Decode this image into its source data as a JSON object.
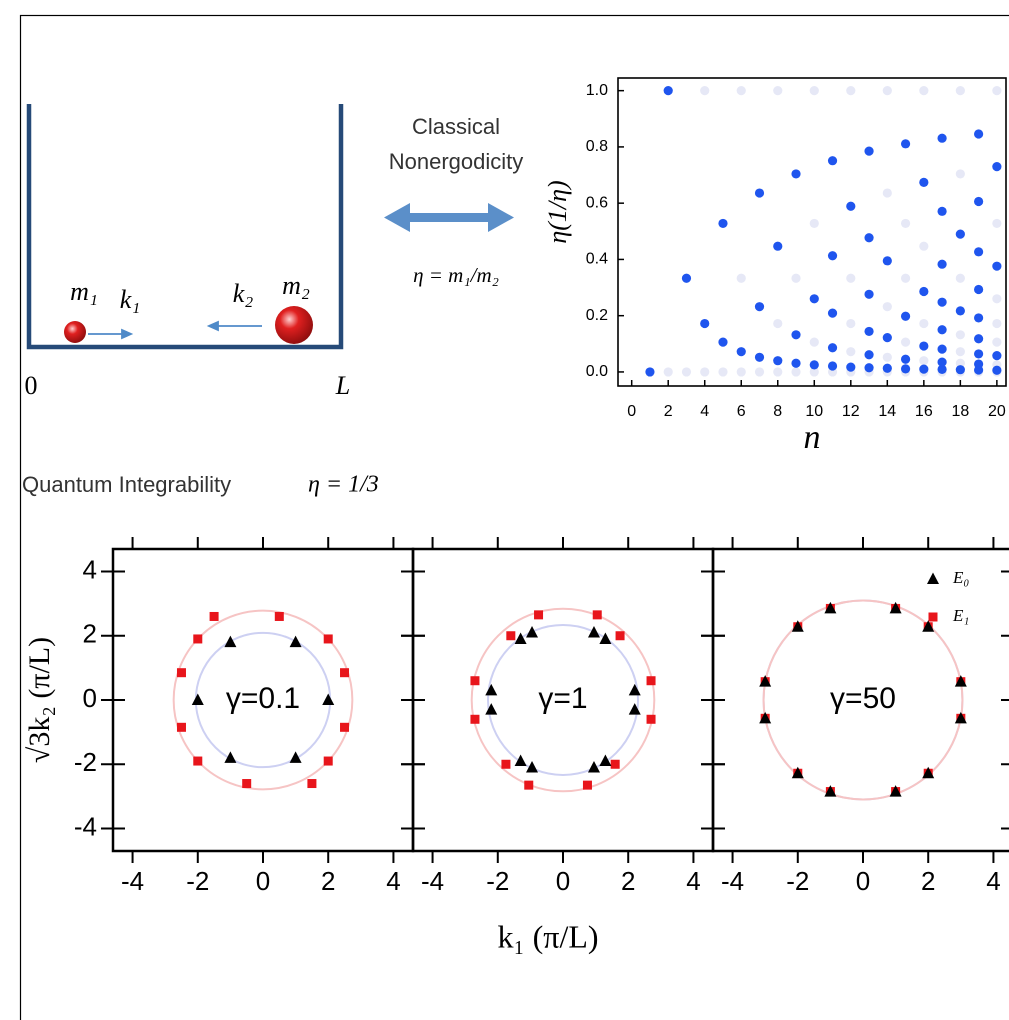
{
  "diagram": {
    "m1": "m₁",
    "k1": "k₁",
    "k2": "k₂",
    "m2": "m₂",
    "origin": "0",
    "length": "L",
    "arrow_top": "Classical",
    "arrow_bottom": "Nonergodicity",
    "ratio": "η = m₁/m₂"
  },
  "section": {
    "title": "Quantum Integrability",
    "eta": "η = 1/3"
  },
  "shared_axes": {
    "xlabel": "k₁ (π/L)",
    "ylabel": "√3k₂ (π/L)"
  },
  "chart_data": [
    {
      "type": "scatter",
      "xlabel": "n",
      "ylabel": "η(1/η)",
      "xlim": [
        -0.75,
        20.5
      ],
      "ylim": [
        -0.05,
        1.045
      ],
      "xticks": [
        0,
        2,
        4,
        6,
        8,
        10,
        12,
        14,
        16,
        18,
        20
      ],
      "yticks": [
        {
          "value": 0,
          "label": "0.0"
        },
        0.2,
        0.4,
        0.6,
        0.8,
        {
          "value": 1,
          "label": "1.0"
        }
      ],
      "series": [
        {
          "color": "#1f55ee",
          "x": [
            1,
            2,
            3,
            4,
            5,
            5,
            6,
            7,
            7,
            7,
            8,
            8,
            9,
            9,
            9,
            10,
            10,
            11,
            11,
            11,
            11,
            11,
            12,
            12,
            13,
            13,
            13,
            13,
            13,
            13,
            14,
            14,
            14,
            15,
            15,
            15,
            15,
            16,
            16,
            16,
            16,
            17,
            17,
            17,
            17,
            17,
            17,
            17,
            17,
            18,
            18,
            18,
            19,
            19,
            19,
            19,
            19,
            19,
            19,
            19,
            19,
            20,
            20,
            20,
            20
          ],
          "values": [
            0,
            1,
            0.333,
            0.172,
            0.106,
            0.528,
            0.072,
            0.052,
            0.232,
            0.636,
            0.04,
            0.447,
            0.031,
            0.132,
            0.704,
            0.025,
            0.26,
            0.021,
            0.086,
            0.209,
            0.413,
            0.751,
            0.017,
            0.589,
            0.015,
            0.061,
            0.144,
            0.276,
            0.477,
            0.785,
            0.013,
            0.122,
            0.395,
            0.011,
            0.045,
            0.198,
            0.811,
            0.01,
            0.092,
            0.286,
            0.674,
            0.009,
            0.035,
            0.081,
            0.15,
            0.248,
            0.383,
            0.571,
            0.831,
            0.008,
            0.217,
            0.49,
            0.007,
            0.028,
            0.064,
            0.118,
            0.192,
            0.293,
            0.427,
            0.606,
            0.846,
            0.006,
            0.058,
            0.376,
            0.73
          ]
        },
        {
          "color": "#e6e8f6",
          "x": [
            2,
            3,
            4,
            5,
            6,
            7,
            8,
            9,
            10,
            11,
            12,
            13,
            14,
            15,
            16,
            17,
            18,
            19,
            20,
            4,
            6,
            8,
            10,
            12,
            14,
            16,
            18,
            20,
            6,
            8,
            9,
            10,
            10,
            12,
            12,
            12,
            14,
            14,
            14,
            15,
            15,
            15,
            16,
            16,
            16,
            18,
            18,
            18,
            18,
            18,
            20,
            20,
            20,
            20,
            20
          ],
          "values": [
            0,
            0,
            0,
            0,
            0,
            0,
            0,
            0,
            0,
            0,
            0,
            0,
            0,
            0,
            0,
            0,
            0,
            0,
            0,
            1,
            1,
            1,
            1,
            1,
            1,
            1,
            1,
            1,
            0.333,
            0.172,
            0.333,
            0.106,
            0.528,
            0.072,
            0.172,
            0.333,
            0.052,
            0.232,
            0.636,
            0.106,
            0.333,
            0.528,
            0.04,
            0.172,
            0.447,
            0.031,
            0.072,
            0.132,
            0.333,
            0.704,
            0.025,
            0.106,
            0.172,
            0.26,
            0.528
          ]
        }
      ]
    },
    {
      "type": "scatter",
      "annotation": "γ=0.1",
      "xlim": [
        -4.6,
        4.6
      ],
      "ylim": [
        -4.7,
        4.7
      ],
      "xticks": [
        -4,
        -2,
        0,
        2,
        4
      ],
      "yticks": [
        -4,
        -2,
        0,
        2,
        4
      ],
      "series": [
        {
          "marker": "triangle",
          "color": "#000000",
          "circle_color": "#cdd0f2",
          "radius": 2.06,
          "x": [
            -1,
            1,
            -2,
            2,
            -1,
            1
          ],
          "values": [
            1.8,
            1.8,
            0,
            0,
            -1.8,
            -1.8
          ]
        },
        {
          "marker": "square",
          "color": "#e8151b",
          "circle_color": "#f6c4c4",
          "radius": 2.74,
          "x": [
            -1.5,
            0.5,
            -2,
            2,
            -2.5,
            2.5,
            -2.5,
            2.5,
            -2,
            2,
            -0.5,
            1.5
          ],
          "values": [
            2.6,
            2.6,
            1.9,
            1.9,
            0.85,
            0.85,
            -0.85,
            -0.85,
            -1.9,
            -1.9,
            -2.6,
            -2.6
          ]
        }
      ]
    },
    {
      "type": "scatter",
      "annotation": "γ=1",
      "xlim": [
        -4.6,
        4.6
      ],
      "ylim": [
        -4.7,
        4.7
      ],
      "xticks": [
        -4,
        -2,
        0,
        2,
        4
      ],
      "yticks": [
        -4,
        -2,
        0,
        2,
        4
      ],
      "series": [
        {
          "marker": "triangle",
          "color": "#000000",
          "circle_color": "#cdd0f2",
          "radius": 2.3,
          "x": [
            -1.3,
            -0.95,
            0.95,
            1.3,
            -2.2,
            -2.2,
            2.2,
            2.2,
            -1.3,
            -0.95,
            0.95,
            1.3
          ],
          "values": [
            1.9,
            2.1,
            2.1,
            1.9,
            0.3,
            -0.3,
            0.3,
            -0.3,
            -1.9,
            -2.1,
            -2.1,
            -1.9
          ]
        },
        {
          "marker": "square",
          "color": "#e8151b",
          "circle_color": "#f6c4c4",
          "radius": 2.8,
          "x": [
            -0.75,
            1.05,
            -1.6,
            1.75,
            -2.7,
            2.7,
            -2.7,
            2.7,
            -1.75,
            1.6,
            -1.05,
            0.75
          ],
          "values": [
            2.65,
            2.65,
            2.0,
            2.0,
            0.6,
            0.6,
            -0.6,
            -0.6,
            -2.0,
            -2.0,
            -2.65,
            -2.65
          ]
        }
      ]
    },
    {
      "type": "scatter",
      "annotation": "γ=50",
      "legend": "upper right",
      "xlim": [
        -4.6,
        4.6
      ],
      "ylim": [
        -4.7,
        4.7
      ],
      "xticks": [
        -4,
        -2,
        0,
        2,
        4
      ],
      "yticks": [
        -4,
        -2,
        0,
        2,
        4
      ],
      "series": [
        {
          "name": "E₀",
          "marker": "triangle",
          "color": "#000000",
          "circle_color": "#cdd0f2",
          "radius": 3.05,
          "x": [
            -3,
            3,
            -3,
            3,
            -2,
            2,
            -2,
            2,
            -1,
            1,
            -1,
            1
          ],
          "values": [
            0.57,
            0.57,
            -0.57,
            -0.57,
            2.28,
            2.28,
            -2.28,
            -2.28,
            2.85,
            2.85,
            -2.85,
            -2.85
          ]
        },
        {
          "name": "E₁",
          "marker": "square",
          "color": "#e8151b",
          "circle_color": "#f6c4c4",
          "radius": 3.05,
          "x": [
            -3,
            3,
            -3,
            3,
            -2,
            2,
            -2,
            2,
            -1,
            1,
            -1,
            1
          ],
          "values": [
            0.57,
            0.57,
            -0.57,
            -0.57,
            2.28,
            2.28,
            -2.28,
            -2.28,
            2.85,
            2.85,
            -2.85,
            -2.85
          ]
        }
      ]
    }
  ]
}
